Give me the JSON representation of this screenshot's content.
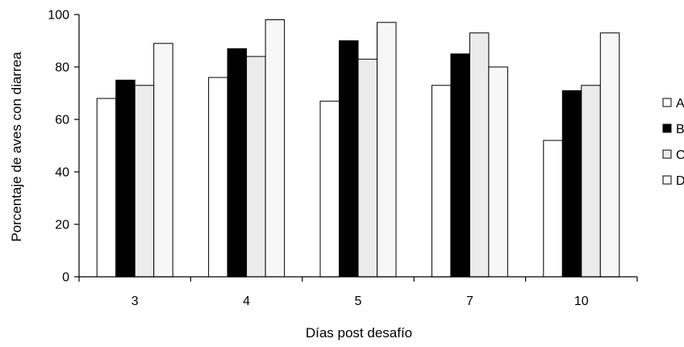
{
  "chart_data": {
    "type": "bar",
    "title": "",
    "xlabel": "Días post desafío",
    "ylabel": "Porcentaje de aves con diarrea",
    "categories": [
      "3",
      "4",
      "5",
      "7",
      "10"
    ],
    "ylim": [
      0,
      100
    ],
    "yticks": [
      "0",
      "20",
      "40",
      "60",
      "80",
      "100"
    ],
    "grid": false,
    "legend_position": "right",
    "series": [
      {
        "name": "A",
        "color": "#ffffff",
        "values": [
          68,
          76,
          67,
          73,
          52
        ]
      },
      {
        "name": "B",
        "color": "#000000",
        "values": [
          75,
          87,
          90,
          85,
          71
        ]
      },
      {
        "name": "C",
        "color": "#ececec",
        "values": [
          73,
          84,
          83,
          93,
          73
        ]
      },
      {
        "name": "D",
        "color": "#f7f7f7",
        "values": [
          89,
          98,
          97,
          80,
          93
        ]
      }
    ]
  }
}
